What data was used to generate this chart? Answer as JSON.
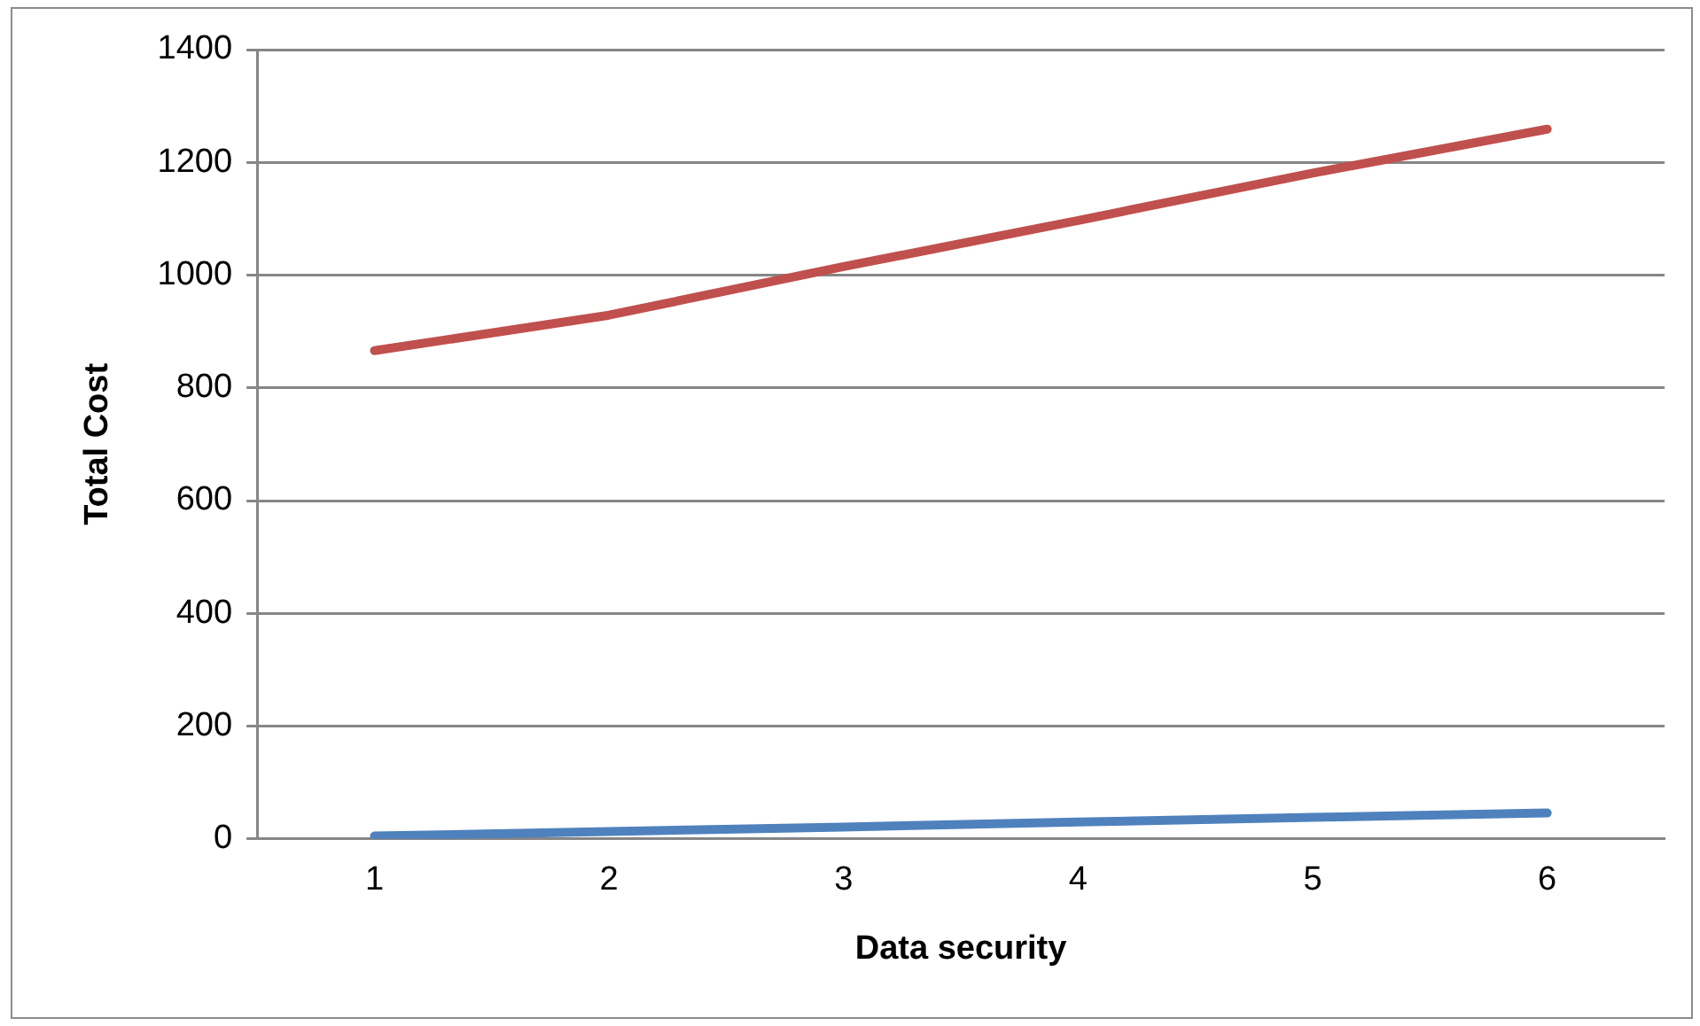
{
  "chart_data": {
    "type": "line",
    "xlabel": "Data security",
    "ylabel": "Total Cost",
    "categories": [
      "1",
      "2",
      "3",
      "4",
      "5",
      "6"
    ],
    "series": [
      {
        "color": "#4f81bd",
        "values": [
          5,
          13,
          21,
          30,
          38,
          46
        ]
      },
      {
        "color": "#c0504d",
        "values": [
          866,
          929,
          1015,
          1097,
          1181,
          1259
        ]
      }
    ],
    "ylim": [
      0,
      1400
    ],
    "yticks": [
      0,
      200,
      400,
      600,
      800,
      1000,
      1200,
      1400
    ],
    "grid": "y",
    "legend": false,
    "marker": "none"
  }
}
